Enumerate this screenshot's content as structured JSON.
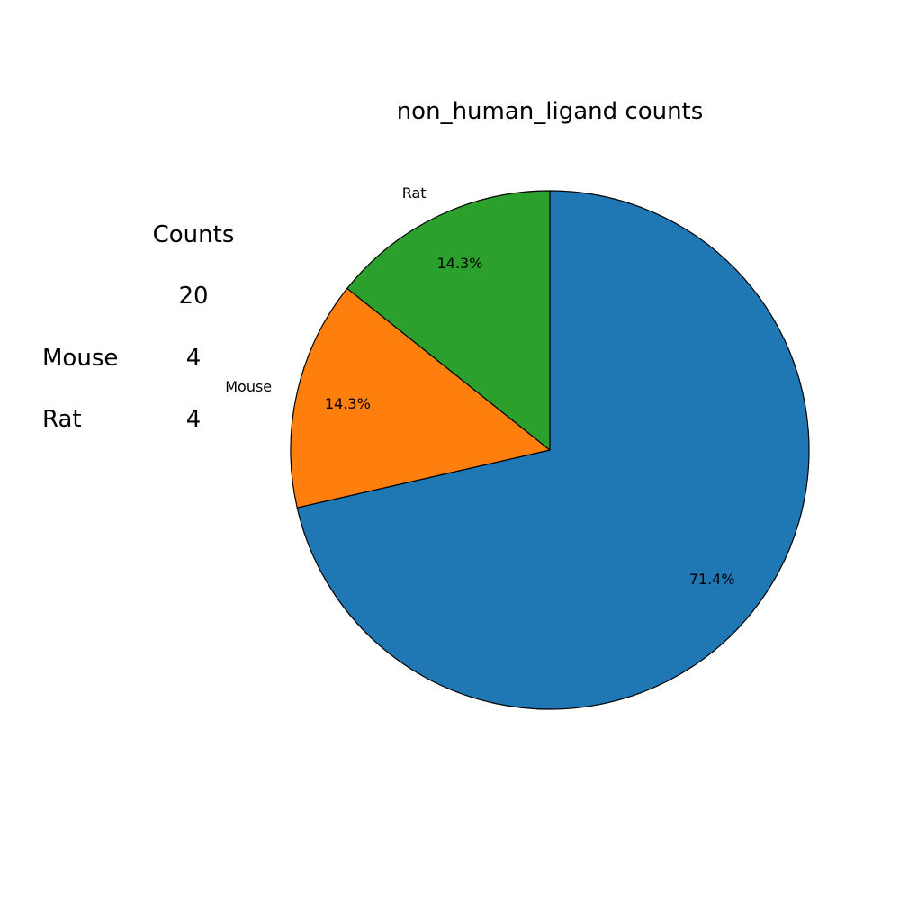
{
  "chart_data": {
    "type": "pie",
    "title": "non_human_ligand counts",
    "categories": [
      "",
      "Mouse",
      "Rat"
    ],
    "values": [
      20,
      4,
      4
    ],
    "percent_labels": [
      "71.4%",
      "14.3%",
      "14.3%"
    ],
    "colors": [
      "#1f77b4",
      "#ff7f0e",
      "#2ca02c"
    ],
    "start_angle_deg": 90,
    "direction": "clockwise",
    "edge_color": "#000000"
  },
  "counts_table": {
    "header": "Counts",
    "rows": [
      {
        "label": "",
        "value": "20"
      },
      {
        "label": "Mouse",
        "value": "4"
      },
      {
        "label": "Rat",
        "value": "4"
      }
    ]
  }
}
